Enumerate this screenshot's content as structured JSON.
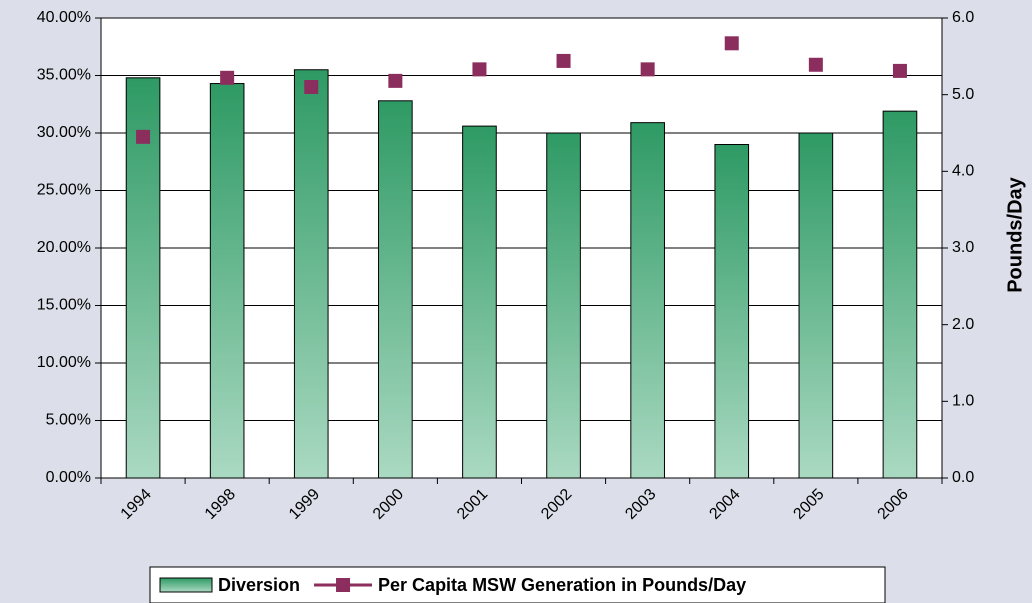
{
  "chart_data": {
    "type": "bar",
    "categories": [
      "1994",
      "1998",
      "1999",
      "2000",
      "2001",
      "2002",
      "2003",
      "2004",
      "2005",
      "2006"
    ],
    "series": [
      {
        "name": "Diversion",
        "type": "bar",
        "color": "#2e9a64",
        "values": [
          34.8,
          34.3,
          35.5,
          32.8,
          30.6,
          30.0,
          30.9,
          29.0,
          30.0,
          31.9
        ]
      },
      {
        "name": "Per Capita MSW Generation in Pounds/Day",
        "type": "line",
        "axis": "y2",
        "color": "#8b2e5e",
        "values": [
          4.45,
          5.22,
          5.1,
          5.18,
          5.33,
          5.44,
          5.33,
          5.67,
          5.39,
          5.31
        ]
      }
    ],
    "ylim": [
      0,
      40
    ],
    "yticks": [
      {
        "value": 0,
        "label": "0.00%"
      },
      {
        "value": 5,
        "label": "5.00%"
      },
      {
        "value": 10,
        "label": "10.00%"
      },
      {
        "value": 15,
        "label": "15.00%"
      },
      {
        "value": 20,
        "label": "20.00%"
      },
      {
        "value": 25,
        "label": "25.00%"
      },
      {
        "value": 30,
        "label": "30.00%"
      },
      {
        "value": 35,
        "label": "35.00%"
      },
      {
        "value": 40,
        "label": "40.00%"
      }
    ],
    "y2lim": [
      0,
      6
    ],
    "y2ticks": [
      {
        "value": 0,
        "label": "0.0"
      },
      {
        "value": 1,
        "label": "1.0"
      },
      {
        "value": 2,
        "label": "2.0"
      },
      {
        "value": 3,
        "label": "3.0"
      },
      {
        "value": 4,
        "label": "4.0"
      },
      {
        "value": 5,
        "label": "5.0"
      },
      {
        "value": 6,
        "label": "6.0"
      }
    ],
    "y2label": "Pounds/Day",
    "grid": true,
    "legend": "bottom"
  }
}
